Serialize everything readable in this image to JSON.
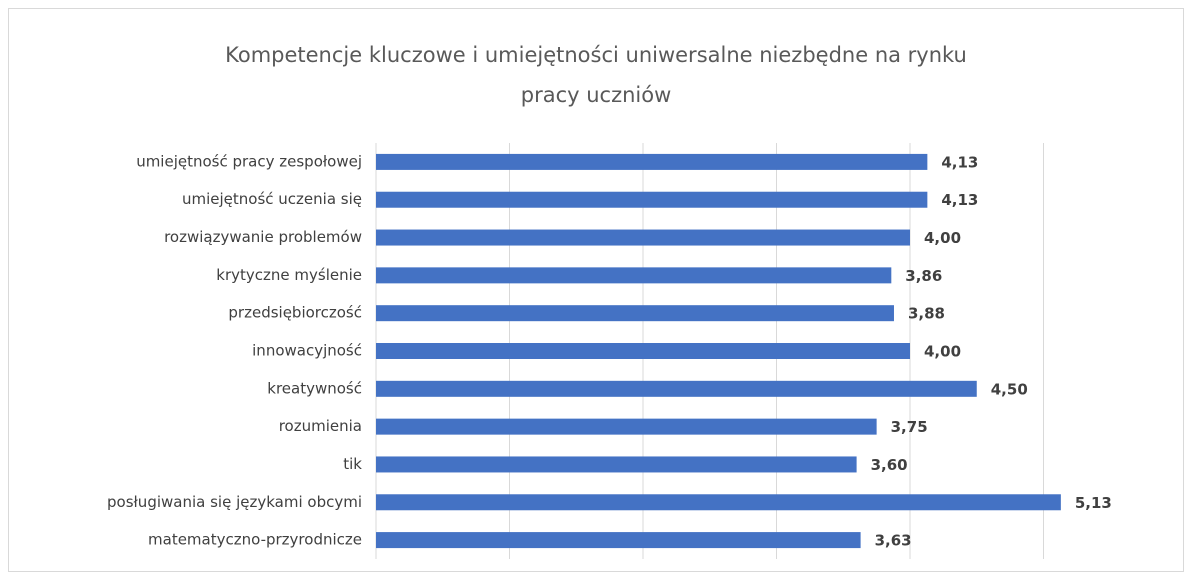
{
  "chart_data": {
    "type": "barh",
    "title": [
      "Kompetencje kluczowe i umiejętności uniwersalne niezbędne na rynku",
      "pracy uczniów"
    ],
    "categories": [
      "umiejętność pracy zespołowej",
      "umiejętność uczenia się",
      "rozwiązywanie problemów",
      "krytyczne myślenie",
      "przedsiębiorczość",
      "innowacyjność",
      "kreatywność",
      "rozumienia",
      "tik",
      "posługiwania się językami obcymi",
      "matematyczno-przyrodnicze"
    ],
    "values": [
      4.13,
      4.13,
      4.0,
      3.86,
      3.88,
      4.0,
      4.5,
      3.75,
      3.6,
      5.13,
      3.63
    ],
    "value_labels": [
      "4,13",
      "4,13",
      "4,00",
      "3,86",
      "3,88",
      "4,00",
      "4,50",
      "3,75",
      "3,60",
      "5,13",
      "3,63"
    ],
    "color": "#4472c4",
    "xlim": [
      0,
      6
    ],
    "xticks": [
      0,
      1,
      2,
      3,
      4,
      5
    ],
    "grid": true
  }
}
